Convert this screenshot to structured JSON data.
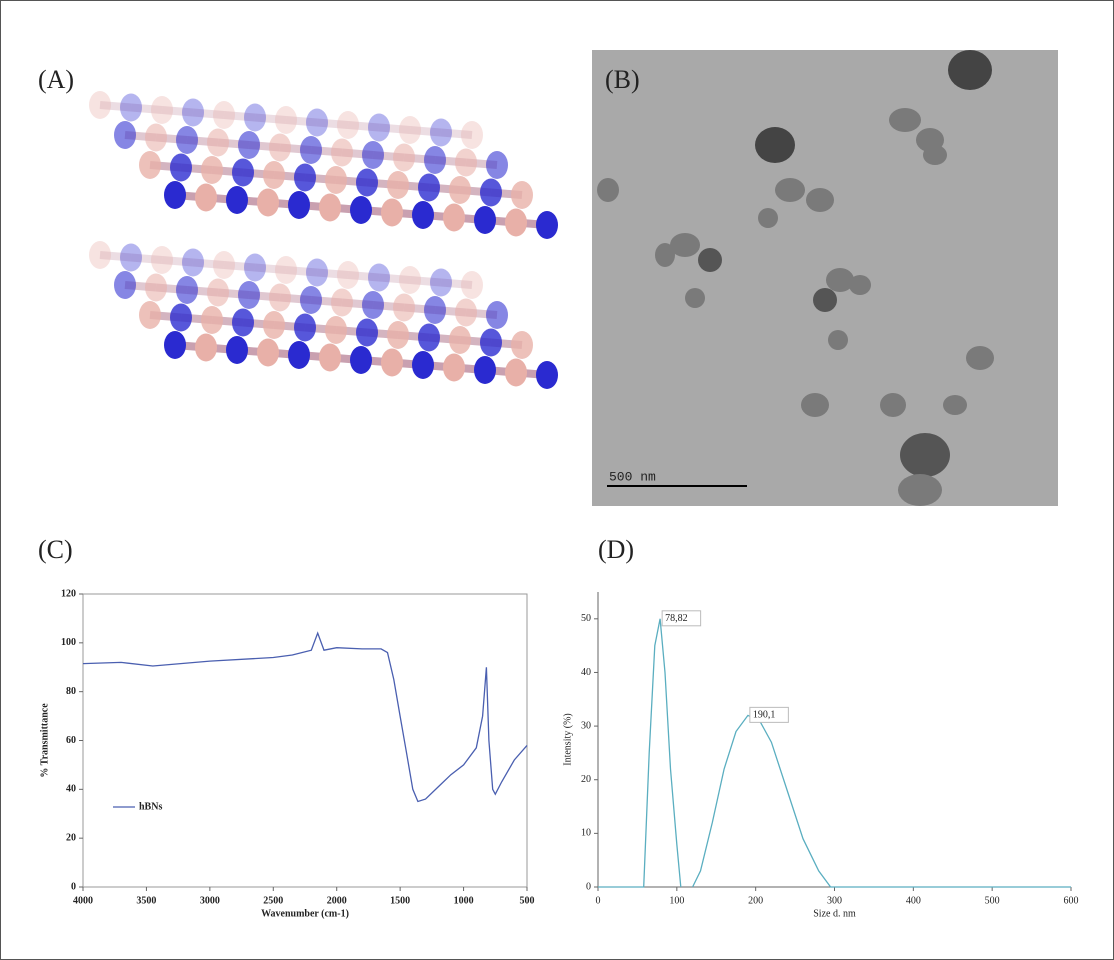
{
  "panels": {
    "labels": [
      "(A)",
      "(B)",
      "(C)",
      "(D)"
    ],
    "scale_bar": "500 nm"
  },
  "chart_data": [
    {
      "type": "line",
      "x_label": "Wavenumber (cm-1)",
      "y_label": "% Transmittance",
      "xlim": [
        4000,
        500
      ],
      "xticks": [
        4000,
        3500,
        3000,
        2500,
        2000,
        1500,
        1000,
        500
      ],
      "ylim": [
        0,
        120
      ],
      "yticks": [
        0,
        20,
        40,
        60,
        80,
        100,
        120
      ],
      "legend": "lower left",
      "x": [
        4000,
        3700,
        3450,
        3000,
        2500,
        2350,
        2200,
        2150,
        2100,
        2000,
        1800,
        1650,
        1600,
        1550,
        1500,
        1450,
        1400,
        1360,
        1300,
        1200,
        1100,
        1000,
        900,
        850,
        820,
        800,
        770,
        750,
        700,
        600,
        500
      ],
      "series": [
        {
          "name": "hBNs",
          "color": "#4a5fb0",
          "values": [
            91.5,
            92,
            90.5,
            92.5,
            94,
            95,
            97,
            104,
            97,
            98,
            97.5,
            97.5,
            96,
            85,
            70,
            55,
            40,
            35,
            36,
            41,
            46,
            50,
            57,
            70,
            90,
            60,
            40,
            38,
            43,
            52,
            58
          ]
        }
      ]
    },
    {
      "type": "line",
      "x_label": "Size d. nm",
      "y_label": "Intensity (%)",
      "xlim": [
        0,
        600
      ],
      "xticks": [
        0,
        100,
        200,
        300,
        400,
        500,
        600
      ],
      "ylim": [
        0,
        55
      ],
      "yticks": [
        0,
        10,
        20,
        30,
        40,
        50
      ],
      "x": [
        0,
        58,
        65,
        72,
        78.82,
        85,
        92,
        100,
        105,
        112,
        120,
        130,
        145,
        160,
        175,
        190.1,
        205,
        220,
        240,
        260,
        280,
        295,
        400,
        600
      ],
      "series": [
        {
          "color": "#5aaec0",
          "values": [
            0,
            0,
            25,
            45,
            50,
            40,
            22,
            8,
            0,
            null,
            0,
            3,
            12,
            22,
            29,
            32,
            31,
            27,
            18,
            9,
            3,
            0,
            0,
            0
          ]
        }
      ],
      "annotations": [
        {
          "x": 78.82,
          "y": 50,
          "text": "78,82"
        },
        {
          "x": 190.1,
          "y": 32,
          "text": "190,1"
        }
      ]
    }
  ]
}
